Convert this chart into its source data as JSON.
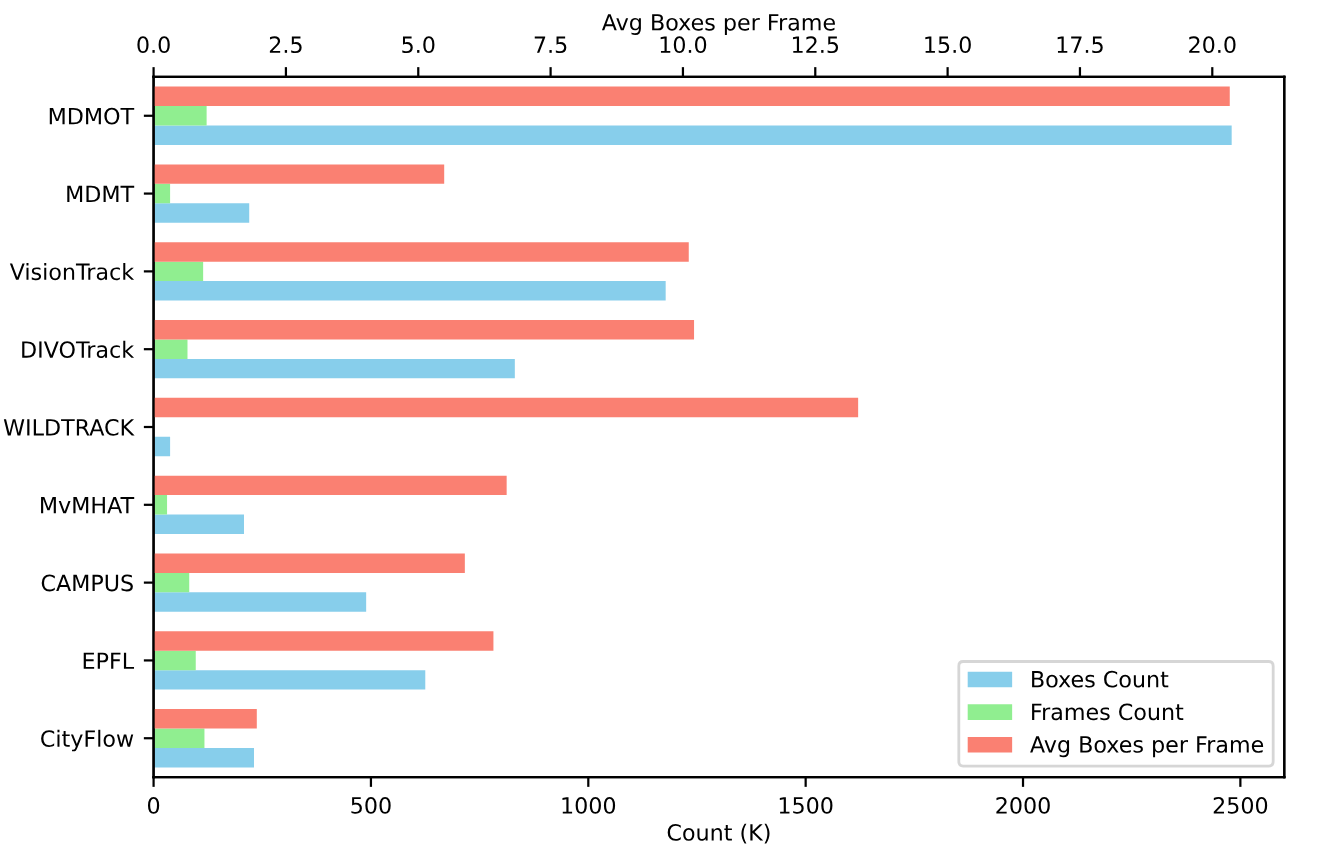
{
  "chart_data": {
    "type": "bar",
    "orientation": "horizontal",
    "categories": [
      "MDMOT",
      "MDMT",
      "VisionTrack",
      "DIVOTrack",
      "WILDTRACK",
      "MvMHAT",
      "CAMPUS",
      "EPFL",
      "CityFlow"
    ],
    "series": [
      {
        "name": "Boxes Count",
        "color": "#87ceeb",
        "values": [
          2480,
          220,
          1178,
          831,
          38,
          208,
          489,
          625,
          231
        ]
      },
      {
        "name": "Frames Count",
        "color": "#90ee90",
        "values": [
          122,
          38,
          114,
          78,
          0,
          31,
          82,
          97,
          117
        ]
      },
      {
        "name": "Avg Boxes per Frame",
        "color": "#fa8072",
        "axis": "x2",
        "values": [
          20.33,
          5.49,
          10.11,
          10.21,
          13.31,
          6.67,
          5.88,
          6.42,
          1.95
        ]
      }
    ],
    "xlabel": "Count (K)",
    "x2label": "Avg Boxes per Frame",
    "xlim": [
      0,
      2601
    ],
    "xticks": [
      0,
      500,
      1000,
      1500,
      2000,
      2500
    ],
    "x2lim": [
      0,
      21.36
    ],
    "x2ticks": [
      {
        "value": 0,
        "label": "0.0"
      },
      {
        "value": 2.5,
        "label": "2.5"
      },
      {
        "value": 5,
        "label": "5.0"
      },
      {
        "value": 7.5,
        "label": "7.5"
      },
      {
        "value": 10,
        "label": "10.0"
      },
      {
        "value": 12.5,
        "label": "12.5"
      },
      {
        "value": 15,
        "label": "15.0"
      },
      {
        "value": 17.5,
        "label": "17.5"
      },
      {
        "value": 20,
        "label": "20.0"
      }
    ],
    "legend": "bottom right"
  }
}
